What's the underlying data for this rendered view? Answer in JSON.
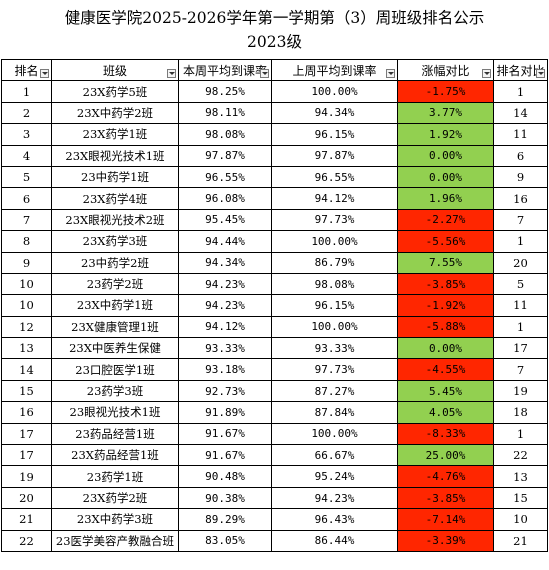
{
  "title_line1": "健康医学院2025-2026学年第一学期第（3）周班级排名公示",
  "title_line2": "2023级",
  "headers": [
    "排名",
    "班级",
    "本周平均到课率",
    "上周平均到课率",
    "涨幅对比",
    "排名对比"
  ],
  "colors": {
    "negative": "#ff2600",
    "positive": "#92d050"
  },
  "rows": [
    {
      "rank": "1",
      "class": "23X药学5班",
      "this_week": "98.25%",
      "last_week": "100.00%",
      "change": "-1.75%",
      "trend": "neg",
      "prev_rank": "1"
    },
    {
      "rank": "2",
      "class": "23X中药学2班",
      "this_week": "98.11%",
      "last_week": "94.34%",
      "change": "3.77%",
      "trend": "pos",
      "prev_rank": "14"
    },
    {
      "rank": "3",
      "class": "23X药学1班",
      "this_week": "98.08%",
      "last_week": "96.15%",
      "change": "1.92%",
      "trend": "pos",
      "prev_rank": "11"
    },
    {
      "rank": "4",
      "class": "23X眼视光技术1班",
      "this_week": "97.87%",
      "last_week": "97.87%",
      "change": "0.00%",
      "trend": "pos",
      "prev_rank": "6"
    },
    {
      "rank": "5",
      "class": "23中药学1班",
      "this_week": "96.55%",
      "last_week": "96.55%",
      "change": "0.00%",
      "trend": "pos",
      "prev_rank": "9"
    },
    {
      "rank": "6",
      "class": "23X药学4班",
      "this_week": "96.08%",
      "last_week": "94.12%",
      "change": "1.96%",
      "trend": "pos",
      "prev_rank": "16"
    },
    {
      "rank": "7",
      "class": "23X眼视光技术2班",
      "this_week": "95.45%",
      "last_week": "97.73%",
      "change": "-2.27%",
      "trend": "neg",
      "prev_rank": "7"
    },
    {
      "rank": "8",
      "class": "23X药学3班",
      "this_week": "94.44%",
      "last_week": "100.00%",
      "change": "-5.56%",
      "trend": "neg",
      "prev_rank": "1"
    },
    {
      "rank": "9",
      "class": "23中药学2班",
      "this_week": "94.34%",
      "last_week": "86.79%",
      "change": "7.55%",
      "trend": "pos",
      "prev_rank": "20"
    },
    {
      "rank": "10",
      "class": "23药学2班",
      "this_week": "94.23%",
      "last_week": "98.08%",
      "change": "-3.85%",
      "trend": "neg",
      "prev_rank": "5"
    },
    {
      "rank": "10",
      "class": "23X中药学1班",
      "this_week": "94.23%",
      "last_week": "96.15%",
      "change": "-1.92%",
      "trend": "neg",
      "prev_rank": "11"
    },
    {
      "rank": "12",
      "class": "23X健康管理1班",
      "this_week": "94.12%",
      "last_week": "100.00%",
      "change": "-5.88%",
      "trend": "neg",
      "prev_rank": "1"
    },
    {
      "rank": "13",
      "class": "23X中医养生保健",
      "this_week": "93.33%",
      "last_week": "93.33%",
      "change": "0.00%",
      "trend": "pos",
      "prev_rank": "17"
    },
    {
      "rank": "14",
      "class": "23口腔医学1班",
      "this_week": "93.18%",
      "last_week": "97.73%",
      "change": "-4.55%",
      "trend": "neg",
      "prev_rank": "7"
    },
    {
      "rank": "15",
      "class": "23药学3班",
      "this_week": "92.73%",
      "last_week": "87.27%",
      "change": "5.45%",
      "trend": "pos",
      "prev_rank": "19"
    },
    {
      "rank": "16",
      "class": "23眼视光技术1班",
      "this_week": "91.89%",
      "last_week": "87.84%",
      "change": "4.05%",
      "trend": "pos",
      "prev_rank": "18"
    },
    {
      "rank": "17",
      "class": "23药品经营1班",
      "this_week": "91.67%",
      "last_week": "100.00%",
      "change": "-8.33%",
      "trend": "neg",
      "prev_rank": "1"
    },
    {
      "rank": "17",
      "class": "23X药品经营1班",
      "this_week": "91.67%",
      "last_week": "66.67%",
      "change": "25.00%",
      "trend": "pos",
      "prev_rank": "22"
    },
    {
      "rank": "19",
      "class": "23药学1班",
      "this_week": "90.48%",
      "last_week": "95.24%",
      "change": "-4.76%",
      "trend": "neg",
      "prev_rank": "13"
    },
    {
      "rank": "20",
      "class": "23X药学2班",
      "this_week": "90.38%",
      "last_week": "94.23%",
      "change": "-3.85%",
      "trend": "neg",
      "prev_rank": "15"
    },
    {
      "rank": "21",
      "class": "23X中药学3班",
      "this_week": "89.29%",
      "last_week": "96.43%",
      "change": "-7.14%",
      "trend": "neg",
      "prev_rank": "10"
    },
    {
      "rank": "22",
      "class": "23医学美容产教融合班",
      "this_week": "83.05%",
      "last_week": "86.44%",
      "change": "-3.39%",
      "trend": "neg",
      "prev_rank": "21"
    }
  ]
}
